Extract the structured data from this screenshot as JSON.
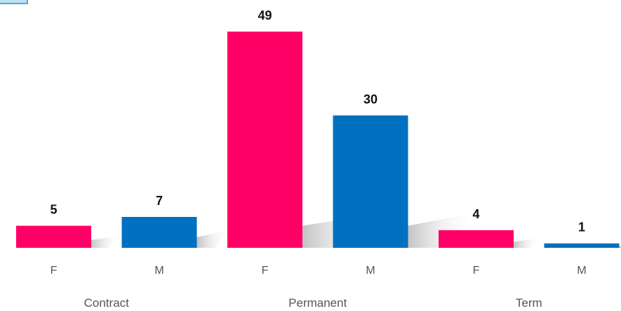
{
  "colors": {
    "F": "#ff0066",
    "M": "#0070c0",
    "shadow": "#c8c8c8"
  },
  "chart_data": {
    "type": "bar",
    "groups": [
      "Contract",
      "Permanent",
      "Term"
    ],
    "categories": [
      "F",
      "M",
      "F",
      "M",
      "F",
      "M"
    ],
    "values": [
      5,
      7,
      49,
      30,
      4,
      1
    ],
    "ylim": [
      0,
      49
    ],
    "grid": false,
    "data_labels": [
      "5",
      "7",
      "49",
      "30",
      "4",
      "1"
    ]
  }
}
